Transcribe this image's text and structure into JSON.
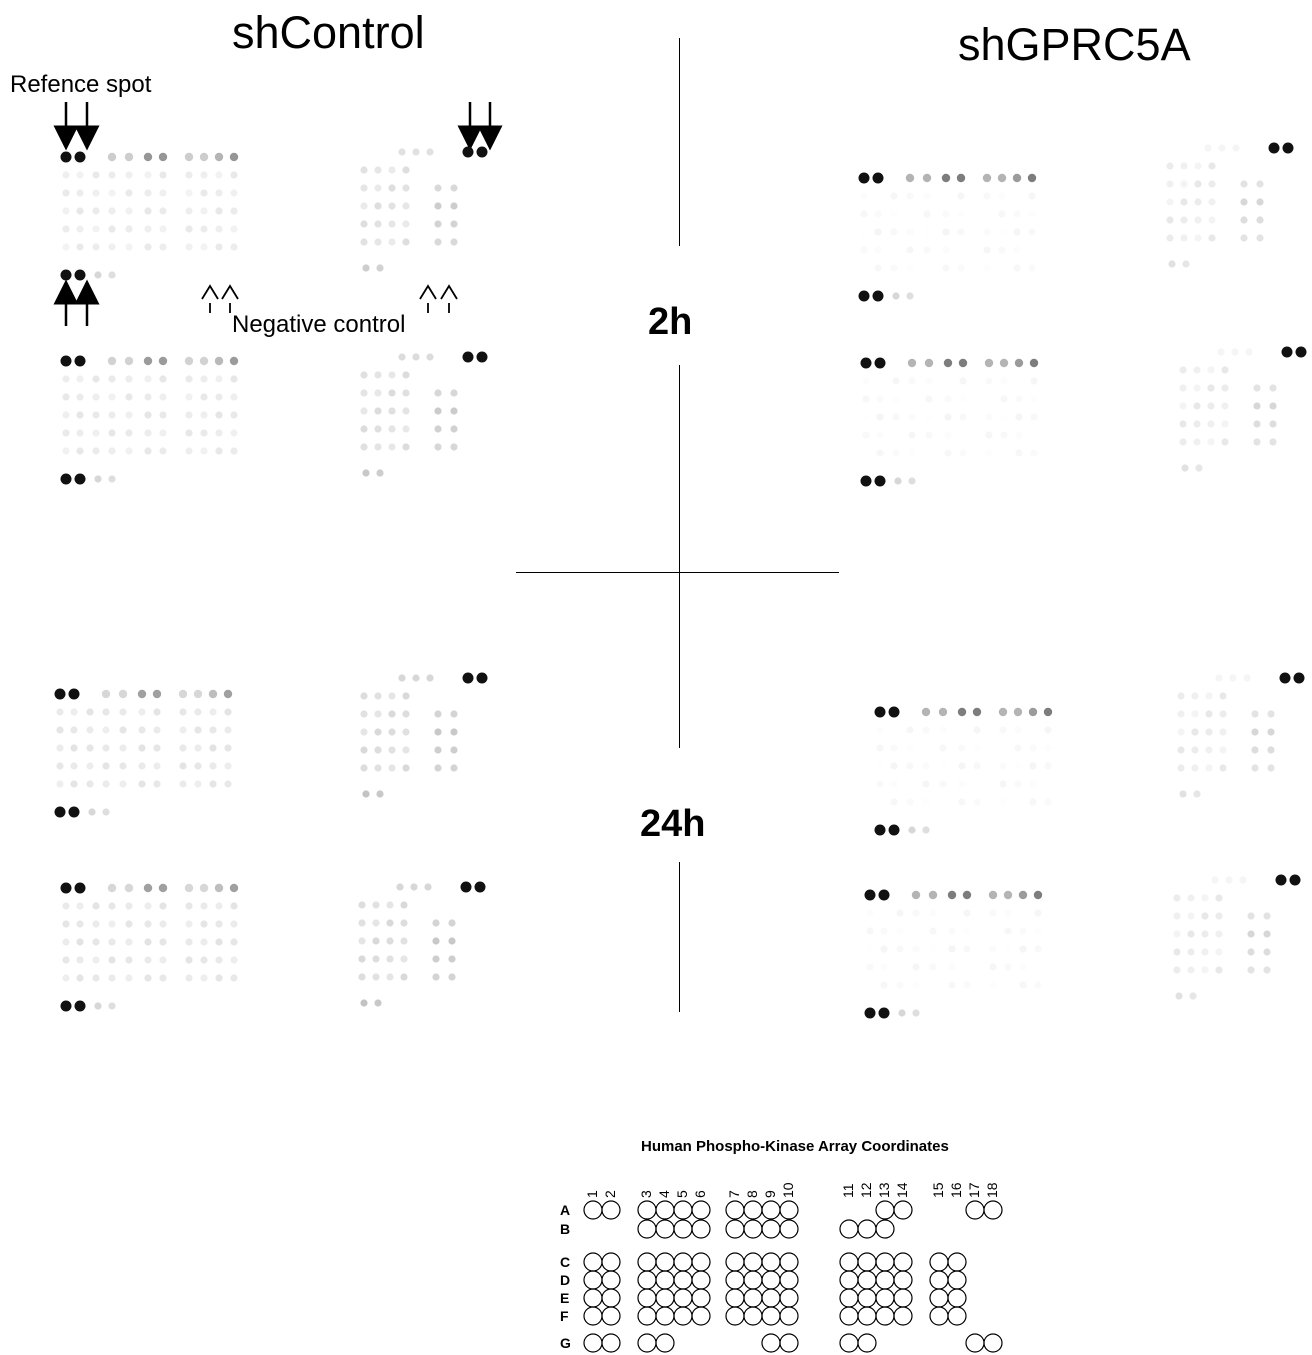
{
  "headers": {
    "left": "shControl",
    "right": "shGPRC5A"
  },
  "timepoints": {
    "early": "2h",
    "late": "24h"
  },
  "annotations": {
    "reference_spot": "Refence spot",
    "negative_control": "Negative control"
  },
  "legend": {
    "title": "Human Phospho-Kinase Array Coordinates",
    "columns": [
      "1",
      "2",
      "3",
      "4",
      "5",
      "6",
      "7",
      "8",
      "9",
      "10",
      "11",
      "12",
      "13",
      "14",
      "15",
      "16",
      "17",
      "18"
    ],
    "rows": [
      "A",
      "B",
      "C",
      "D",
      "E",
      "F",
      "G"
    ]
  },
  "colors": {
    "reference": "#111111",
    "ink": "#000000"
  }
}
